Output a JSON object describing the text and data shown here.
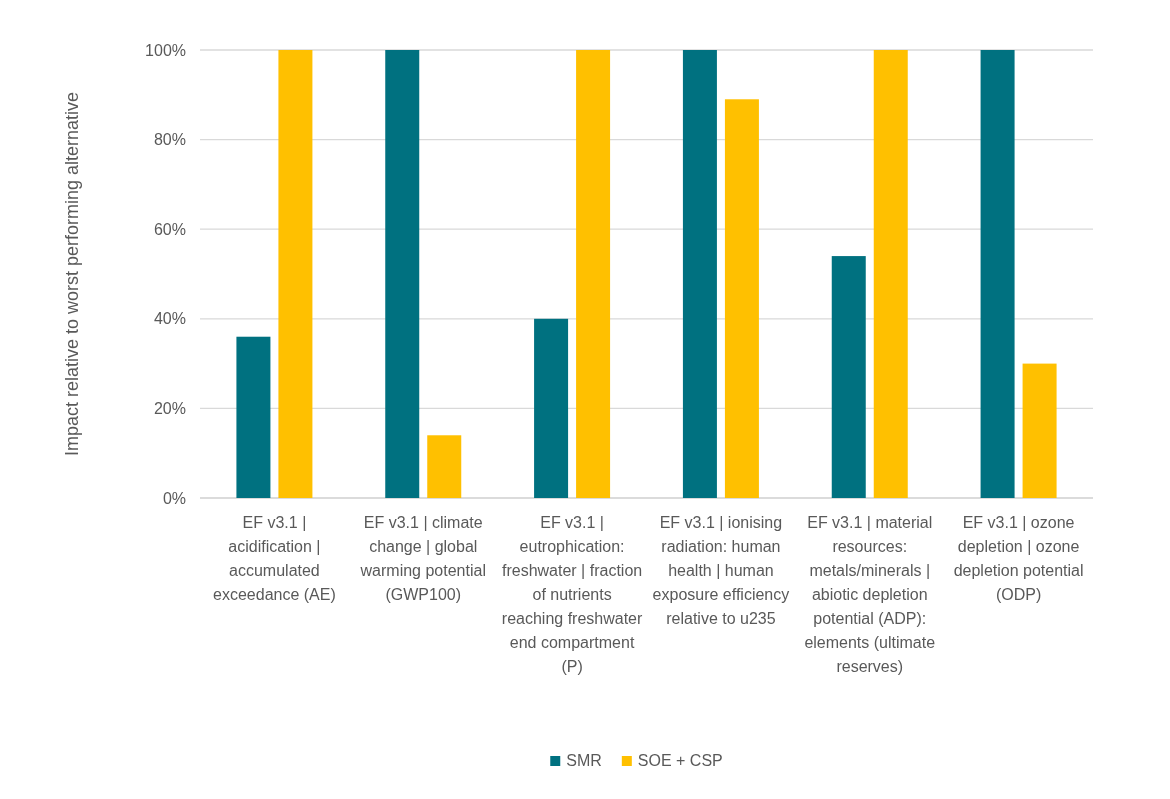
{
  "chart_data": {
    "type": "bar",
    "ylabel": "Impact relative to worst performing alternative",
    "categories": [
      "EF v3.1 | acidification | accumulated exceedance (AE)",
      "EF v3.1 | climate change | global warming potential (GWP100)",
      "EF v3.1 | eutrophication: freshwater | fraction of nutrients reaching freshwater end compartment (P)",
      "EF v3.1 | ionising radiation: human health | human exposure efficiency relative to u235",
      "EF v3.1 | material resources: metals/minerals | abiotic depletion potential (ADP): elements (ultimate reserves)",
      "EF v3.1 | ozone depletion | ozone depletion potential (ODP)"
    ],
    "series": [
      {
        "name": "SMR",
        "color": "#007180",
        "values": [
          36,
          100,
          40,
          100,
          54,
          100
        ]
      },
      {
        "name": "SOE + CSP",
        "color": "#ffc000",
        "values": [
          100,
          14,
          100,
          89,
          100,
          30
        ]
      }
    ],
    "ylim": [
      0,
      100
    ],
    "yticks": [
      {
        "value": 0,
        "label": "0%"
      },
      {
        "value": 20,
        "label": "20%"
      },
      {
        "value": 40,
        "label": "40%"
      },
      {
        "value": 60,
        "label": "60%"
      },
      {
        "value": 80,
        "label": "80%"
      },
      {
        "value": 100,
        "label": "100%"
      }
    ],
    "grid": "y",
    "legend": "bottom"
  }
}
